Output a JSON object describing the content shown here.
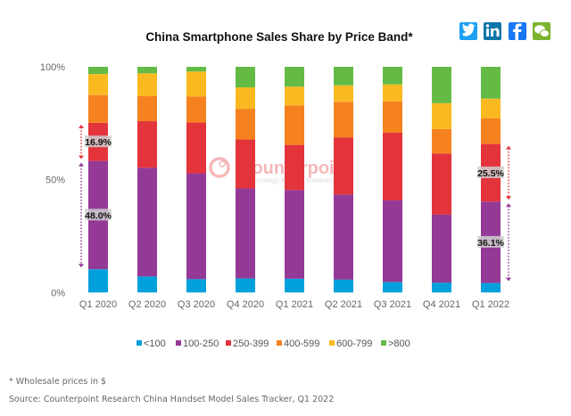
{
  "chart_data": {
    "type": "bar",
    "stacked": true,
    "normalized": true,
    "title": "China Smartphone Sales Share by Price Band*",
    "categories": [
      "Q1 2020",
      "Q2 2020",
      "Q3 2020",
      "Q4 2020",
      "Q1 2021",
      "Q2 2021",
      "Q3 2021",
      "Q4 2021",
      "Q1 2022"
    ],
    "y_ticks": [
      "0%",
      "50%",
      "100%"
    ],
    "ylim": [
      0,
      100
    ],
    "grid": false,
    "legend_position": "bottom",
    "series": [
      {
        "name": "<100",
        "color": "#00a0dc",
        "values": [
          10.3,
          7.1,
          5.9,
          6.2,
          6.1,
          5.7,
          4.6,
          4.3,
          4.2
        ]
      },
      {
        "name": "100-250",
        "color": "#943996",
        "values": [
          48.0,
          48.2,
          46.9,
          39.9,
          39.3,
          37.7,
          36.2,
          30.2,
          36.1
        ]
      },
      {
        "name": "250-399",
        "color": "#e3343c",
        "values": [
          16.9,
          20.6,
          22.5,
          21.7,
          20.0,
          25.3,
          30.0,
          27.1,
          25.5
        ]
      },
      {
        "name": "400-599",
        "color": "#f5821f",
        "values": [
          12.3,
          11.1,
          11.5,
          13.6,
          17.5,
          15.8,
          13.9,
          10.8,
          11.3
        ]
      },
      {
        "name": "600-799",
        "color": "#fbb921",
        "values": [
          9.3,
          10.1,
          11.1,
          9.5,
          8.3,
          7.3,
          7.5,
          11.5,
          8.8
        ]
      },
      {
        "name": ">800",
        "color": "#63bb46",
        "values": [
          3.2,
          2.9,
          2.1,
          9.1,
          8.8,
          8.2,
          7.8,
          16.1,
          14.1
        ]
      }
    ],
    "annotations": [
      {
        "category": "Q1 2020",
        "series": "250-399",
        "text": "16.9%"
      },
      {
        "category": "Q1 2020",
        "series": "100-250",
        "text": "48.0%"
      },
      {
        "category": "Q1 2022",
        "series": "250-399",
        "text": "25.5%"
      },
      {
        "category": "Q1 2022",
        "series": "100-250",
        "text": "36.1%"
      }
    ]
  },
  "watermark": {
    "brand": "Counterpoint",
    "tagline": "Technology Market Research"
  },
  "share_icons": [
    "twitter-icon",
    "linkedin-icon",
    "facebook-icon",
    "wechat-icon"
  ],
  "footnote": "* Wholesale prices in $",
  "source": "Source: Counterpoint Research China Handset Model Sales Tracker, Q1 2022"
}
